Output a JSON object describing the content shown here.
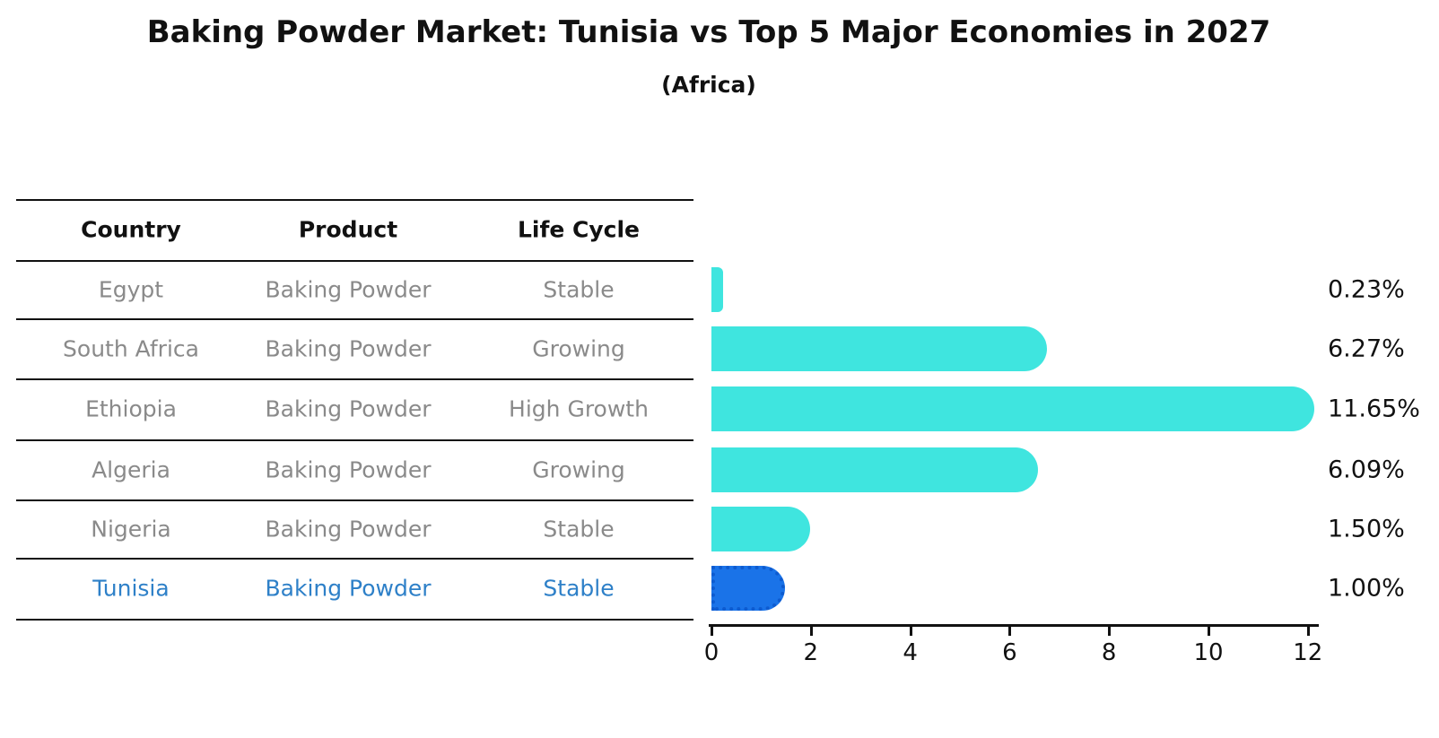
{
  "title": "Baking Powder Market: Tunisia vs Top 5 Major Economies in 2027",
  "subtitle": "(Africa)",
  "table": {
    "headers": [
      "Country",
      "Product",
      "Life Cycle"
    ],
    "rows": [
      {
        "country": "Egypt",
        "product": "Baking Powder",
        "life_cycle": "Stable",
        "highlight": false
      },
      {
        "country": "South Africa",
        "product": "Baking Powder",
        "life_cycle": "Growing",
        "highlight": false
      },
      {
        "country": "Ethiopia",
        "product": "Baking Powder",
        "life_cycle": "High Growth",
        "highlight": false
      },
      {
        "country": "Algeria",
        "product": "Baking Powder",
        "life_cycle": "Growing",
        "highlight": false
      },
      {
        "country": "Nigeria",
        "product": "Baking Powder",
        "life_cycle": "Stable",
        "highlight": false
      },
      {
        "country": "Tunisia",
        "product": "Baking Powder",
        "life_cycle": "Stable",
        "highlight": true
      }
    ]
  },
  "chart_data": {
    "type": "bar",
    "orientation": "horizontal",
    "title": "Baking Powder Market: Tunisia vs Top 5 Major Economies in 2027",
    "subtitle": "(Africa)",
    "categories": [
      "Egypt",
      "South Africa",
      "Ethiopia",
      "Algeria",
      "Nigeria",
      "Tunisia"
    ],
    "values": [
      0.23,
      6.27,
      11.65,
      6.09,
      1.5,
      1.0
    ],
    "value_labels": [
      "0.23%",
      "6.27%",
      "11.65%",
      "6.09%",
      "1.50%",
      "1.00%"
    ],
    "x_ticks": [
      0,
      2,
      4,
      6,
      8,
      10,
      12
    ],
    "xlim": [
      0,
      12
    ],
    "grid": false,
    "legend": "none",
    "highlight_index": 5
  },
  "colors": {
    "bar": "#3fe5df",
    "highlight_bar": "#1a73e8",
    "highlight_border": "#0d5bd0",
    "highlight_text": "#2e80c8",
    "muted_text": "#8a8a8a",
    "line": "#111111"
  }
}
